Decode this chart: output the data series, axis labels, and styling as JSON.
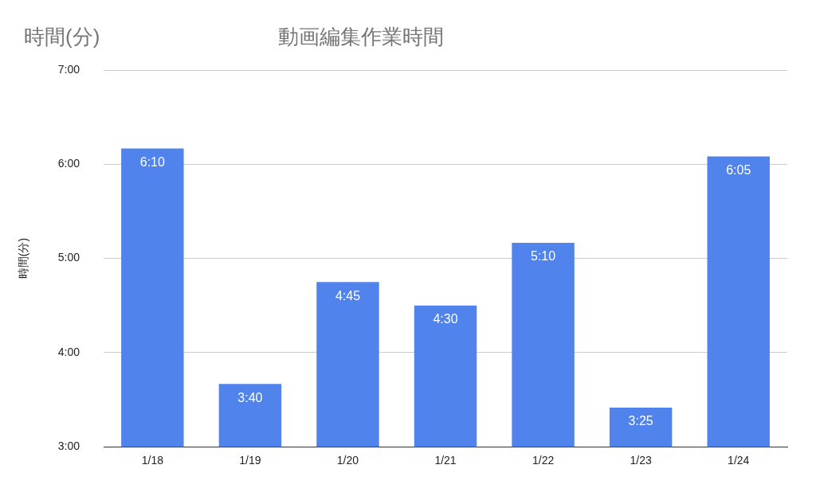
{
  "chart_data": {
    "type": "bar",
    "title": "動画編集作業時間",
    "ylabel": "時間(分)",
    "annotations": [
      "時間(分)"
    ],
    "categories": [
      "1/18",
      "1/19",
      "1/20",
      "1/21",
      "1/22",
      "1/23",
      "1/24"
    ],
    "values": [
      6.1667,
      3.6667,
      4.75,
      4.5,
      5.1667,
      3.4167,
      6.0833
    ],
    "value_labels": [
      "6:10",
      "3:40",
      "4:45",
      "4:30",
      "5:10",
      "3:25",
      "6:05"
    ],
    "color": "#5083ec",
    "ylim": [
      3,
      7
    ],
    "yticks": [
      {
        "value": 3,
        "label": "3:00"
      },
      {
        "value": 4,
        "label": "4:00"
      },
      {
        "value": 5,
        "label": "5:00"
      },
      {
        "value": 6,
        "label": "6:00"
      },
      {
        "value": 7,
        "label": "7:00"
      }
    ],
    "grid": "y",
    "legend": false
  }
}
